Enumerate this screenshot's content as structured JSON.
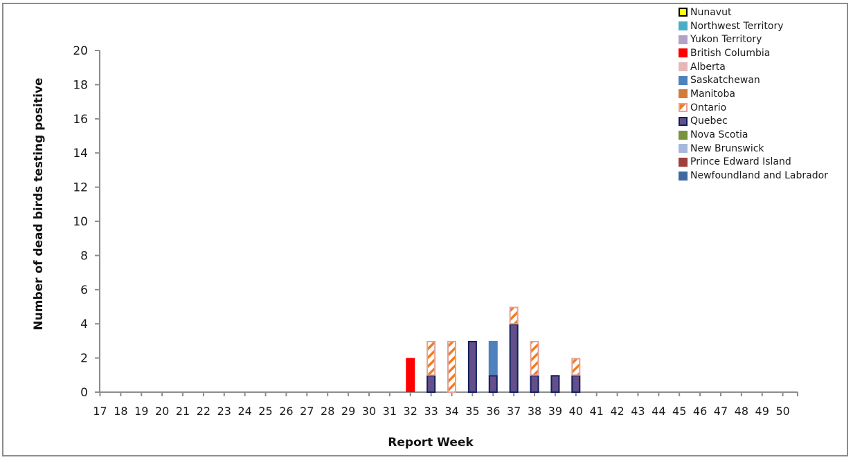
{
  "chart_data": {
    "type": "bar",
    "stacked": true,
    "title": "",
    "xlabel": "Report Week",
    "ylabel": "Number of dead birds testing positive",
    "ylim": [
      0,
      20
    ],
    "yticks": [
      0,
      2,
      4,
      6,
      8,
      10,
      12,
      14,
      16,
      18,
      20
    ],
    "grid": false,
    "legend_position": "top-right",
    "categories": [
      "17",
      "18",
      "19",
      "20",
      "21",
      "22",
      "23",
      "24",
      "25",
      "26",
      "27",
      "28",
      "29",
      "30",
      "31",
      "32",
      "33",
      "34",
      "35",
      "36",
      "37",
      "38",
      "39",
      "40",
      "41",
      "42",
      "43",
      "44",
      "45",
      "46",
      "47",
      "48",
      "49",
      "50"
    ],
    "series": [
      {
        "name": "Nunavut",
        "color": "#ffff00",
        "border": "#000000",
        "values": [
          0,
          0,
          0,
          0,
          0,
          0,
          0,
          0,
          0,
          0,
          0,
          0,
          0,
          0,
          0,
          0,
          0,
          0,
          0,
          0,
          0,
          0,
          0,
          0,
          0,
          0,
          0,
          0,
          0,
          0,
          0,
          0,
          0,
          0
        ]
      },
      {
        "name": "Northwest Territory",
        "color": "#4bacc6",
        "values": [
          0,
          0,
          0,
          0,
          0,
          0,
          0,
          0,
          0,
          0,
          0,
          0,
          0,
          0,
          0,
          0,
          0,
          0,
          0,
          0,
          0,
          0,
          0,
          0,
          0,
          0,
          0,
          0,
          0,
          0,
          0,
          0,
          0,
          0
        ]
      },
      {
        "name": "Yukon Territory",
        "color": "#b3a2c7",
        "values": [
          0,
          0,
          0,
          0,
          0,
          0,
          0,
          0,
          0,
          0,
          0,
          0,
          0,
          0,
          0,
          0,
          0,
          0,
          0,
          0,
          0,
          0,
          0,
          0,
          0,
          0,
          0,
          0,
          0,
          0,
          0,
          0,
          0,
          0
        ]
      },
      {
        "name": "British Columbia",
        "color": "#ff0000",
        "values": [
          0,
          0,
          0,
          0,
          0,
          0,
          0,
          0,
          0,
          0,
          0,
          0,
          0,
          0,
          0,
          2,
          0,
          0,
          0,
          0,
          0,
          0,
          0,
          0,
          0,
          0,
          0,
          0,
          0,
          0,
          0,
          0,
          0,
          0
        ]
      },
      {
        "name": "Alberta",
        "color": "#e6b9b8",
        "values": [
          0,
          0,
          0,
          0,
          0,
          0,
          0,
          0,
          0,
          0,
          0,
          0,
          0,
          0,
          0,
          0,
          0,
          0,
          0,
          0,
          0,
          0,
          0,
          0,
          0,
          0,
          0,
          0,
          0,
          0,
          0,
          0,
          0,
          0
        ]
      },
      {
        "name": "Saskatchewan",
        "color": "#4f81bd",
        "values": [
          0,
          0,
          0,
          0,
          0,
          0,
          0,
          0,
          0,
          0,
          0,
          0,
          0,
          0,
          0,
          0,
          0,
          0,
          0,
          2,
          0,
          0,
          0,
          0,
          0,
          0,
          0,
          0,
          0,
          0,
          0,
          0,
          0,
          0
        ]
      },
      {
        "name": "Manitoba",
        "color": "#d27b3c",
        "values": [
          0,
          0,
          0,
          0,
          0,
          0,
          0,
          0,
          0,
          0,
          0,
          0,
          0,
          0,
          0,
          0,
          0,
          0,
          0,
          0,
          0,
          0,
          0,
          0,
          0,
          0,
          0,
          0,
          0,
          0,
          0,
          0,
          0,
          0
        ]
      },
      {
        "name": "Ontario",
        "color": "#f07d1a",
        "border": "#e6a09a",
        "pattern": "diagonal-hatch",
        "values": [
          0,
          0,
          0,
          0,
          0,
          0,
          0,
          0,
          0,
          0,
          0,
          0,
          0,
          0,
          0,
          0,
          2,
          3,
          0,
          0,
          1,
          2,
          0,
          1,
          0,
          0,
          0,
          0,
          0,
          0,
          0,
          0,
          0,
          0
        ]
      },
      {
        "name": "Quebec",
        "color": "#654f8a",
        "border": "#0f1f5c",
        "values": [
          0,
          0,
          0,
          0,
          0,
          0,
          0,
          0,
          0,
          0,
          0,
          0,
          0,
          0,
          0,
          0,
          1,
          0,
          3,
          1,
          4,
          1,
          1,
          1,
          0,
          0,
          0,
          0,
          0,
          0,
          0,
          0,
          0,
          0
        ]
      },
      {
        "name": "Nova Scotia",
        "color": "#77933c",
        "values": [
          0,
          0,
          0,
          0,
          0,
          0,
          0,
          0,
          0,
          0,
          0,
          0,
          0,
          0,
          0,
          0,
          0,
          0,
          0,
          0,
          0,
          0,
          0,
          0,
          0,
          0,
          0,
          0,
          0,
          0,
          0,
          0,
          0,
          0
        ]
      },
      {
        "name": "New Brunswick",
        "color": "#a7b9da",
        "values": [
          0,
          0,
          0,
          0,
          0,
          0,
          0,
          0,
          0,
          0,
          0,
          0,
          0,
          0,
          0,
          0,
          0,
          0,
          0,
          0,
          0,
          0,
          0,
          0,
          0,
          0,
          0,
          0,
          0,
          0,
          0,
          0,
          0,
          0
        ]
      },
      {
        "name": "Prince Edward Island",
        "color": "#a0403c",
        "values": [
          0,
          0,
          0,
          0,
          0,
          0,
          0,
          0,
          0,
          0,
          0,
          0,
          0,
          0,
          0,
          0,
          0,
          0,
          0,
          0,
          0,
          0,
          0,
          0,
          0,
          0,
          0,
          0,
          0,
          0,
          0,
          0,
          0,
          0
        ]
      },
      {
        "name": "Newfoundland and Labrador",
        "color": "#3d6aa0",
        "values": [
          0,
          0,
          0,
          0,
          0,
          0,
          0,
          0,
          0,
          0,
          0,
          0,
          0,
          0,
          0,
          0,
          0,
          0,
          0,
          0,
          0,
          0,
          0,
          0,
          0,
          0,
          0,
          0,
          0,
          0,
          0,
          0,
          0,
          0
        ]
      }
    ],
    "stack_order_bottom_to_top": [
      "Newfoundland and Labrador",
      "Prince Edward Island",
      "New Brunswick",
      "Nova Scotia",
      "Quebec",
      "Ontario",
      "Manitoba",
      "Saskatchewan",
      "Alberta",
      "British Columbia",
      "Yukon Territory",
      "Northwest Territory",
      "Nunavut"
    ]
  },
  "axes": {
    "x_title": "Report Week",
    "y_title": "Number of dead birds testing positive"
  },
  "colors": {
    "axis": "#8c8c8c",
    "text": "#1a1a1a"
  }
}
